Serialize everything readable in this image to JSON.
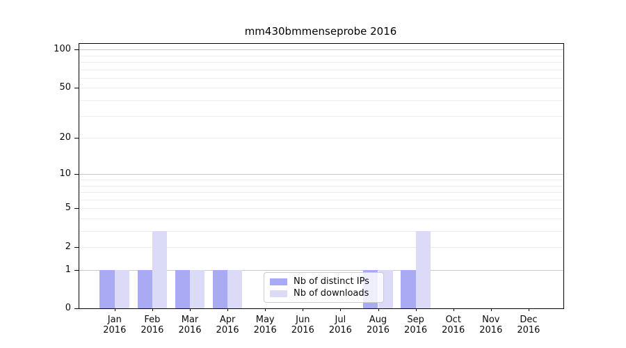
{
  "chart_data": {
    "type": "bar",
    "title": "mm430bmmenseprobe 2016",
    "categories": [
      "Jan",
      "Feb",
      "Mar",
      "Apr",
      "May",
      "Jun",
      "Jul",
      "Aug",
      "Sep",
      "Oct",
      "Nov",
      "Dec"
    ],
    "category_year": "2016",
    "series": [
      {
        "name": "Nb of distinct IPs",
        "color": "#a9a9f4",
        "values": [
          1,
          1,
          1,
          1,
          0,
          0,
          0,
          1,
          1,
          0,
          0,
          0
        ]
      },
      {
        "name": "Nb of downloads",
        "color": "#dbdbf8",
        "values": [
          1,
          3,
          1,
          1,
          0,
          0,
          0,
          1,
          3,
          0,
          0,
          0
        ]
      }
    ],
    "yscale": "log10(1+y)",
    "ylim": [
      0,
      111
    ],
    "yticks": [
      0,
      1,
      2,
      5,
      10,
      20,
      50,
      100
    ],
    "grid": "horizontal",
    "major_gridlines": [
      1,
      10,
      100
    ],
    "minor_gridlines": [
      2,
      3,
      4,
      5,
      6,
      7,
      8,
      9,
      20,
      30,
      40,
      50,
      60,
      70,
      80,
      90
    ],
    "legend_position": "lower-center",
    "colors": {
      "major_grid": "#c8c8c8",
      "minor_grid": "#ececec",
      "axis": "#000000",
      "text": "#0a0a0a"
    }
  }
}
